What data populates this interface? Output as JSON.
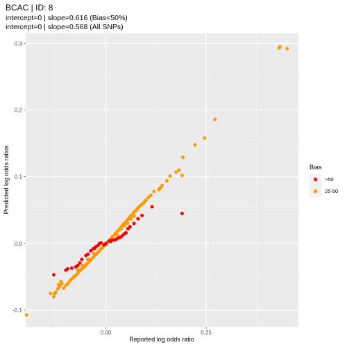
{
  "chart_data": {
    "type": "scatter",
    "title": "BCAC | ID: 8",
    "subtitle_lines": [
      "intercept=0 | slope=0.616 (Bias<50%)",
      "intercept=0 | slope=0.568 (All SNPs)"
    ],
    "xlabel": "Reported log odds ratio",
    "ylabel": "Predicted log odds ratios",
    "xlim": [
      -0.2,
      0.48
    ],
    "ylim": [
      -0.125,
      0.315
    ],
    "x_ticks": [
      0.0,
      0.25
    ],
    "x_tick_labels": [
      "0.00",
      "0.25"
    ],
    "y_ticks": [
      -0.1,
      0.0,
      0.1,
      0.2,
      0.3
    ],
    "y_tick_labels": [
      "-0.1",
      "0.0",
      "0.1",
      "0.2",
      "0.3"
    ],
    "grid": true,
    "legend": {
      "title": "Bias",
      "placement": "right",
      "entries": [
        {
          "label": ">50",
          "color": "#ff0000"
        },
        {
          "label": "25-50",
          "color": "#ff9900"
        }
      ]
    },
    "series": [
      {
        "name": "25-50",
        "color": "#ff9900",
        "points": [
          [
            0.432,
            0.293
          ],
          [
            0.434,
            0.295
          ],
          [
            0.452,
            0.292
          ],
          [
            0.272,
            0.186
          ],
          [
            0.246,
            0.158
          ],
          [
            0.222,
            0.148
          ],
          [
            0.192,
            0.129
          ],
          [
            0.182,
            0.11
          ],
          [
            0.19,
            0.102
          ],
          [
            0.175,
            0.107
          ],
          [
            0.16,
            0.101
          ],
          [
            0.152,
            0.094
          ],
          [
            0.14,
            0.087
          ],
          [
            0.135,
            0.083
          ],
          [
            0.132,
            0.081
          ],
          [
            0.12,
            0.078
          ],
          [
            0.112,
            0.072
          ],
          [
            0.106,
            0.069
          ],
          [
            0.1,
            0.065
          ],
          [
            0.097,
            0.063
          ],
          [
            0.093,
            0.06
          ],
          [
            0.088,
            0.058
          ],
          [
            0.083,
            0.055
          ],
          [
            0.08,
            0.053
          ],
          [
            0.076,
            0.05
          ],
          [
            0.072,
            0.048
          ],
          [
            0.068,
            0.045
          ],
          [
            0.064,
            0.042
          ],
          [
            0.06,
            0.04
          ],
          [
            0.056,
            0.037
          ],
          [
            0.052,
            0.034
          ],
          [
            0.048,
            0.031
          ],
          [
            0.044,
            0.029
          ],
          [
            0.04,
            0.026
          ],
          [
            0.036,
            0.023
          ],
          [
            0.032,
            0.02
          ],
          [
            0.028,
            0.018
          ],
          [
            0.024,
            0.015
          ],
          [
            0.02,
            0.012
          ],
          [
            0.016,
            0.01
          ],
          [
            0.012,
            0.007
          ],
          [
            0.008,
            0.004
          ],
          [
            0.004,
            0.002
          ],
          [
            0.0,
            -0.001
          ],
          [
            -0.004,
            -0.003
          ],
          [
            -0.008,
            -0.006
          ],
          [
            -0.012,
            -0.008
          ],
          [
            -0.016,
            -0.011
          ],
          [
            -0.02,
            -0.013
          ],
          [
            -0.024,
            -0.016
          ],
          [
            -0.028,
            -0.018
          ],
          [
            -0.032,
            -0.021
          ],
          [
            -0.036,
            -0.023
          ],
          [
            -0.04,
            -0.026
          ],
          [
            -0.044,
            -0.029
          ],
          [
            -0.048,
            -0.031
          ],
          [
            -0.052,
            -0.034
          ],
          [
            -0.056,
            -0.036
          ],
          [
            -0.06,
            -0.038
          ],
          [
            -0.064,
            -0.04
          ],
          [
            -0.068,
            -0.043
          ],
          [
            -0.072,
            -0.046
          ],
          [
            -0.076,
            -0.048
          ],
          [
            -0.08,
            -0.05
          ],
          [
            -0.085,
            -0.053
          ],
          [
            -0.09,
            -0.056
          ],
          [
            -0.095,
            -0.06
          ],
          [
            -0.1,
            -0.063
          ],
          [
            -0.105,
            -0.067
          ],
          [
            -0.11,
            -0.06
          ],
          [
            -0.112,
            -0.057
          ],
          [
            -0.115,
            -0.064
          ],
          [
            -0.118,
            -0.062
          ],
          [
            0.03,
            0.012
          ],
          [
            0.038,
            0.022
          ],
          [
            0.046,
            0.027
          ],
          [
            0.054,
            0.03
          ],
          [
            0.062,
            0.037
          ],
          [
            0.07,
            0.041
          ],
          [
            -0.03,
            -0.015
          ],
          [
            -0.045,
            -0.024
          ],
          [
            -0.058,
            -0.033
          ],
          [
            -0.07,
            -0.04
          ],
          [
            -0.12,
            -0.068
          ],
          [
            -0.125,
            -0.073
          ],
          [
            -0.128,
            -0.075
          ],
          [
            -0.138,
            -0.075
          ],
          [
            -0.13,
            -0.08
          ],
          [
            -0.198,
            -0.107
          ]
        ]
      },
      {
        "name": ">50",
        "color": "#ff0000",
        "points": [
          [
            0.19,
            0.045
          ],
          [
            0.115,
            0.055
          ],
          [
            0.09,
            0.042
          ],
          [
            0.08,
            0.037
          ],
          [
            0.07,
            0.03
          ],
          [
            0.06,
            0.025
          ],
          [
            0.055,
            0.022
          ],
          [
            0.05,
            0.016
          ],
          [
            0.045,
            0.014
          ],
          [
            0.04,
            0.011
          ],
          [
            0.035,
            0.009
          ],
          [
            0.03,
            0.008
          ],
          [
            0.025,
            0.006
          ],
          [
            0.02,
            0.005
          ],
          [
            0.015,
            0.005
          ],
          [
            0.012,
            0.003
          ],
          [
            0.008,
            0.004
          ],
          [
            0.0,
            0.0
          ],
          [
            -0.005,
            -0.002
          ],
          [
            -0.012,
            0.001
          ],
          [
            -0.016,
            0.0
          ],
          [
            -0.02,
            -0.003
          ],
          [
            -0.025,
            -0.005
          ],
          [
            -0.028,
            -0.007
          ],
          [
            -0.032,
            -0.008
          ],
          [
            -0.038,
            -0.011
          ],
          [
            -0.045,
            -0.016
          ],
          [
            -0.05,
            -0.018
          ],
          [
            -0.06,
            -0.024
          ],
          [
            -0.065,
            -0.029
          ],
          [
            -0.07,
            -0.033
          ],
          [
            -0.075,
            -0.035
          ],
          [
            -0.085,
            -0.037
          ],
          [
            -0.095,
            -0.038
          ],
          [
            -0.1,
            -0.04
          ],
          [
            -0.13,
            -0.047
          ]
        ]
      }
    ]
  }
}
